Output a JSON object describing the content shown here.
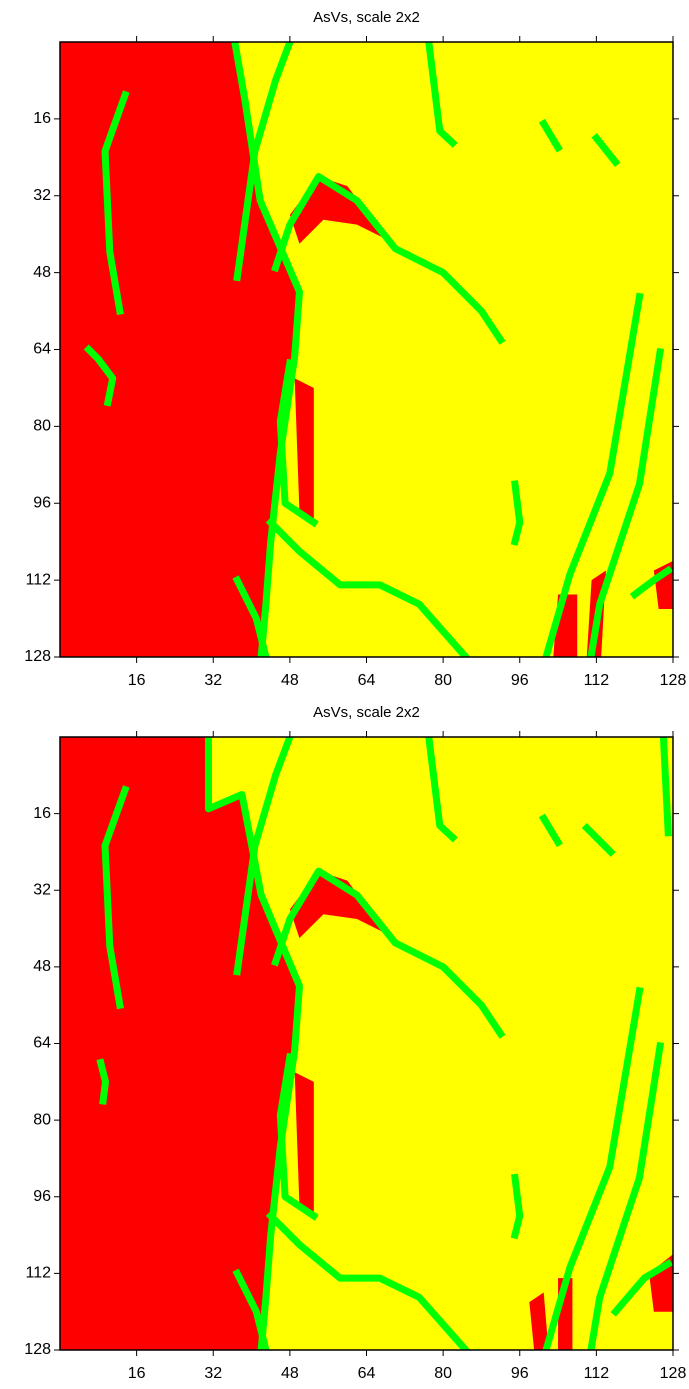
{
  "chart_data": [
    {
      "type": "map",
      "title": "AsVs, scale 2x2",
      "background": "#ffff00",
      "xlim": [
        0,
        128
      ],
      "ylim": [
        128,
        0
      ],
      "xticks": [
        16,
        32,
        48,
        64,
        80,
        96,
        112,
        128
      ],
      "yticks": [
        16,
        32,
        48,
        64,
        80,
        96,
        112,
        128
      ],
      "regions": [
        {
          "color": "#ff0000",
          "x": [
            0,
            36.5,
            38.6,
            41.8,
            50,
            49,
            46,
            44,
            43,
            42,
            0
          ],
          "y": [
            0,
            0,
            12,
            33,
            52,
            65.5,
            85.6,
            104,
            117,
            128,
            128
          ]
        },
        {
          "color": "#ff0000",
          "x": [
            48,
            54,
            60,
            66,
            70,
            62,
            55,
            50
          ],
          "y": [
            36,
            28,
            30,
            38,
            42,
            38,
            37,
            42
          ]
        },
        {
          "color": "#ff0000",
          "x": [
            104,
            108,
            108,
            103
          ],
          "y": [
            115,
            115,
            128,
            128
          ]
        },
        {
          "color": "#ff0000",
          "x": [
            111,
            114,
            113,
            110
          ],
          "y": [
            112,
            110,
            128,
            128
          ]
        },
        {
          "color": "#ff0000",
          "x": [
            124,
            128,
            128,
            125
          ],
          "y": [
            110,
            108,
            118,
            118
          ]
        },
        {
          "color": "#ff0000",
          "x": [
            49,
            53,
            53,
            50
          ],
          "y": [
            70,
            72,
            100,
            98
          ]
        }
      ],
      "curves": [
        {
          "color": "#00ff00",
          "x": [
            13.6,
            9.4,
            10.4,
            12.5
          ],
          "y": [
            11,
            22.7,
            43.7,
            56
          ]
        },
        {
          "color": "#00ff00",
          "x": [
            6,
            8,
            11,
            10
          ],
          "y": [
            64,
            66,
            70,
            75
          ]
        },
        {
          "color": "#00ff00",
          "x": [
            36.5,
            38.6,
            41.8,
            50,
            49,
            46,
            44,
            43,
            42
          ],
          "y": [
            0,
            12,
            33,
            52,
            65.5,
            85.6,
            104,
            117,
            128
          ]
        },
        {
          "color": "#00ff00",
          "x": [
            45,
            48,
            54,
            62,
            70,
            80,
            88,
            92
          ],
          "y": [
            47,
            38,
            28,
            33,
            43,
            48,
            56,
            62
          ]
        },
        {
          "color": "#00ff00",
          "x": [
            48,
            45,
            40.7,
            37
          ],
          "y": [
            0,
            8,
            22.7,
            49
          ]
        },
        {
          "color": "#00ff00",
          "x": [
            77,
            79.3,
            82
          ],
          "y": [
            0,
            18.5,
            21
          ]
        },
        {
          "color": "#00ff00",
          "x": [
            101,
            104
          ],
          "y": [
            17,
            22
          ]
        },
        {
          "color": "#00ff00",
          "x": [
            112,
            116
          ],
          "y": [
            20,
            25
          ]
        },
        {
          "color": "#00ff00",
          "x": [
            44,
            50,
            58.5,
            66.8,
            75,
            85.6
          ],
          "y": [
            100,
            106,
            113,
            113,
            117,
            129
          ]
        },
        {
          "color": "#00ff00",
          "x": [
            121,
            114.8,
            106.5,
            101.2
          ],
          "y": [
            53,
            89.8,
            110.7,
            129
          ]
        },
        {
          "color": "#00ff00",
          "x": [
            125.3,
            121,
            112.7,
            110.7
          ],
          "y": [
            64.5,
            92,
            117,
            129
          ]
        },
        {
          "color": "#00ff00",
          "x": [
            48,
            46,
            47,
            53
          ],
          "y": [
            66.8,
            79,
            96,
            100
          ]
        },
        {
          "color": "#00ff00",
          "x": [
            37,
            41,
            43
          ],
          "y": [
            112,
            120,
            128
          ]
        },
        {
          "color": "#00ff00",
          "x": [
            95,
            96,
            95
          ],
          "y": [
            92,
            100,
            104
          ]
        },
        {
          "color": "#00ff00",
          "x": [
            120,
            124,
            127
          ],
          "y": [
            115,
            112,
            110
          ]
        }
      ]
    },
    {
      "type": "map",
      "title": "AsVs, scale 2x2",
      "background": "#ffff00",
      "xlim": [
        0,
        128
      ],
      "ylim": [
        128,
        0
      ],
      "xticks": [
        16,
        32,
        48,
        64,
        80,
        96,
        112,
        128
      ],
      "yticks": [
        16,
        32,
        48,
        64,
        80,
        96,
        112,
        128
      ],
      "regions": [
        {
          "color": "#ff0000",
          "x": [
            0,
            31,
            31,
            38,
            42,
            50,
            49,
            46,
            44,
            43,
            42,
            0
          ],
          "y": [
            0,
            0,
            15,
            12,
            33,
            52,
            65.5,
            85.6,
            104,
            117,
            128,
            128
          ]
        },
        {
          "color": "#ff0000",
          "x": [
            48,
            54,
            60,
            66,
            70,
            62,
            55,
            50
          ],
          "y": [
            36,
            28,
            30,
            38,
            42,
            38,
            37,
            42
          ]
        },
        {
          "color": "#ff0000",
          "x": [
            98,
            101,
            102,
            99
          ],
          "y": [
            118,
            116,
            128,
            128
          ]
        },
        {
          "color": "#ff0000",
          "x": [
            104,
            107,
            107,
            104
          ],
          "y": [
            113,
            113,
            128,
            128
          ]
        },
        {
          "color": "#ff0000",
          "x": [
            123,
            128,
            128,
            124
          ],
          "y": [
            112,
            108,
            120,
            120
          ]
        },
        {
          "color": "#ff0000",
          "x": [
            49,
            53,
            53,
            50
          ],
          "y": [
            70,
            72,
            100,
            98
          ]
        }
      ],
      "curves": [
        {
          "color": "#00ff00",
          "x": [
            13.6,
            9.4,
            10.4,
            12.5
          ],
          "y": [
            11,
            22.7,
            43.7,
            56
          ]
        },
        {
          "color": "#00ff00",
          "x": [
            8.5,
            9.5,
            9
          ],
          "y": [
            68,
            72,
            76
          ]
        },
        {
          "color": "#00ff00",
          "x": [
            31,
            31,
            38,
            42,
            50,
            49,
            46,
            44,
            43,
            42
          ],
          "y": [
            0,
            15,
            12,
            33,
            52,
            65.5,
            85.6,
            104,
            117,
            128
          ]
        },
        {
          "color": "#00ff00",
          "x": [
            45,
            48,
            54,
            62,
            70,
            80,
            88,
            92
          ],
          "y": [
            47,
            38,
            28,
            33,
            43,
            48,
            56,
            62
          ]
        },
        {
          "color": "#00ff00",
          "x": [
            48,
            45,
            40.7,
            37
          ],
          "y": [
            0,
            8,
            22.7,
            49
          ]
        },
        {
          "color": "#00ff00",
          "x": [
            77,
            79.3,
            82
          ],
          "y": [
            0,
            18.5,
            21
          ]
        },
        {
          "color": "#00ff00",
          "x": [
            101,
            104
          ],
          "y": [
            17,
            22
          ]
        },
        {
          "color": "#00ff00",
          "x": [
            110,
            115
          ],
          "y": [
            19,
            24
          ]
        },
        {
          "color": "#00ff00",
          "x": [
            44,
            50,
            58.5,
            66.8,
            75,
            85.6
          ],
          "y": [
            100,
            106,
            113,
            113,
            117,
            129
          ]
        },
        {
          "color": "#00ff00",
          "x": [
            121,
            114.8,
            106.5,
            101.2
          ],
          "y": [
            53,
            89.8,
            110.7,
            129
          ]
        },
        {
          "color": "#00ff00",
          "x": [
            125.3,
            121,
            112.7,
            110.7
          ],
          "y": [
            64.5,
            92,
            117,
            129
          ]
        },
        {
          "color": "#00ff00",
          "x": [
            48,
            46,
            47,
            53
          ],
          "y": [
            66.8,
            79,
            96,
            100
          ]
        },
        {
          "color": "#00ff00",
          "x": [
            37,
            41,
            43
          ],
          "y": [
            112,
            120,
            128
          ]
        },
        {
          "color": "#00ff00",
          "x": [
            95,
            96,
            95
          ],
          "y": [
            92,
            100,
            104
          ]
        },
        {
          "color": "#00ff00",
          "x": [
            116,
            122,
            127
          ],
          "y": [
            120,
            113,
            110
          ]
        },
        {
          "color": "#00ff00",
          "x": [
            126,
            127
          ],
          "y": [
            0,
            20
          ]
        }
      ]
    }
  ]
}
